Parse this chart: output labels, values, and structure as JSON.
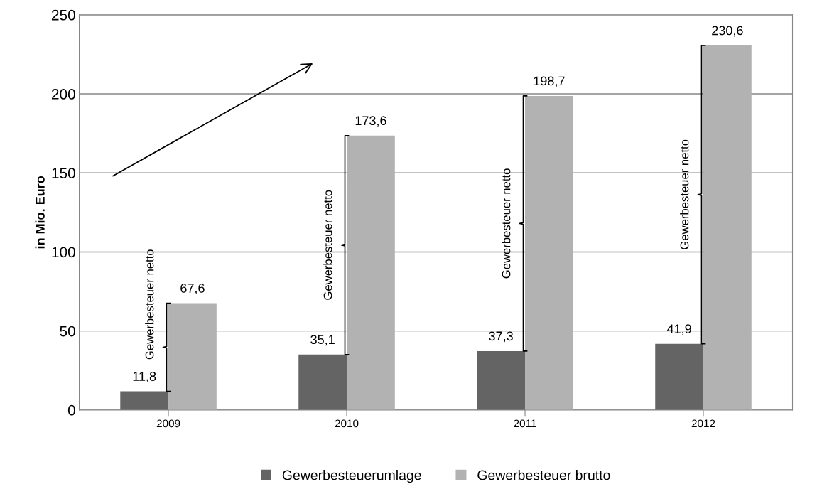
{
  "chart_data": {
    "type": "bar",
    "ylabel": "in Mio. Euro",
    "categories": [
      "2009",
      "2010",
      "2011",
      "2012"
    ],
    "series": [
      {
        "name": "Gewerbesteuerumlage",
        "color": "#646464",
        "values": [
          11.8,
          35.1,
          37.3,
          41.9
        ],
        "value_labels": [
          "11,8",
          "35,1",
          "37,3",
          "41,9"
        ]
      },
      {
        "name": "Gewerbesteuer brutto",
        "color": "#b2b2b2",
        "values": [
          67.6,
          173.6,
          198.7,
          230.6
        ],
        "value_labels": [
          "67,6",
          "173,6",
          "198,7",
          "230,6"
        ]
      }
    ],
    "ylim": [
      0,
      250
    ],
    "yticks": [
      0,
      50,
      100,
      150,
      200,
      250
    ],
    "grid": "y",
    "legend": "bottom",
    "annotations": [
      "Gewerbesteuer netto",
      "Gewerbesteuer netto",
      "Gewerbesteuer netto",
      "Gewerbesteuer netto"
    ]
  }
}
